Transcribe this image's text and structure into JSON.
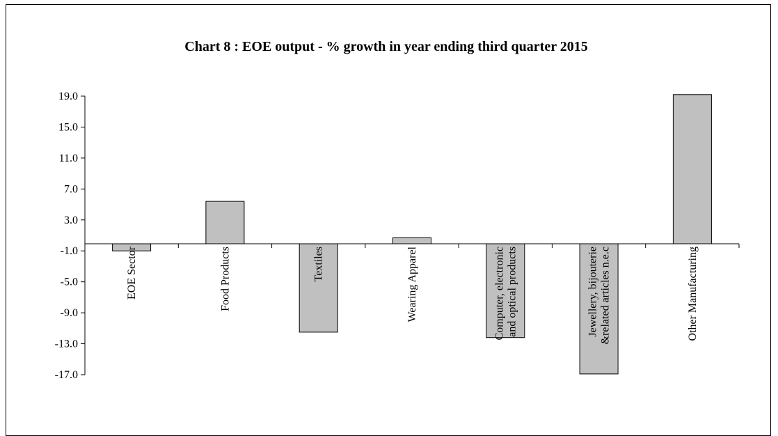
{
  "chart_data": {
    "type": "bar",
    "title": "Chart 8 : EOE output - % growth in year ending third quarter 2015",
    "xlabel": "",
    "ylabel": "",
    "ylim": [
      -17.0,
      19.0
    ],
    "ytick_values": [
      19.0,
      15.0,
      11.0,
      7.0,
      3.0,
      -1.0,
      -5.0,
      -9.0,
      -13.0,
      -17.0
    ],
    "ytick_labels": [
      "19.0",
      "15.0",
      "11.0",
      "7.0",
      "3.0",
      "-1.0",
      "-5.0",
      "-9.0",
      "-13.0",
      "-17.0"
    ],
    "categories": [
      [
        "EOE Sector"
      ],
      [
        "Food Products"
      ],
      [
        "Textiles"
      ],
      [
        "Wearing Apparel"
      ],
      [
        "Computer, electronic",
        "and optical products"
      ],
      [
        "Jewellery, bijouterie",
        "&related articles n.e.c"
      ],
      [
        "Other Manufacturing"
      ]
    ],
    "values": [
      -1.0,
      5.4,
      -11.5,
      0.7,
      -12.2,
      -16.9,
      19.2
    ],
    "grid": false,
    "legend": "none",
    "bar_color": "#c0c0c0",
    "bar_edge_color": "#000000"
  }
}
